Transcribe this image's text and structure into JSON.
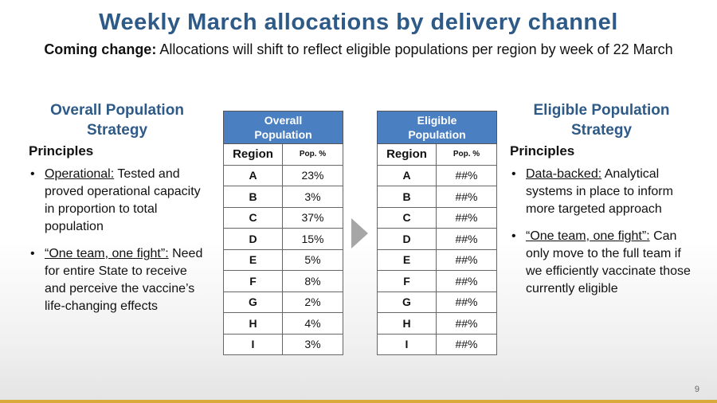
{
  "title": "Weekly March allocations by delivery channel",
  "subtitle": {
    "label": "Coming change:",
    "text": " Allocations will shift to reflect eligible populations per region by week of 22 March"
  },
  "left": {
    "heading_line1": "Overall Population",
    "heading_line2": "Strategy",
    "principles": "Principles",
    "bullets": [
      {
        "term": "Operational:",
        "text": " Tested and proved operational capacity in proportion to total population"
      },
      {
        "term": "“One team, one fight”:",
        "text": " Need for entire State to receive and perceive the vaccine’s life-changing  effects"
      }
    ]
  },
  "right": {
    "heading_line1": "Eligible Population",
    "heading_line2": "Strategy",
    "principles": "Principles",
    "bullets": [
      {
        "term": "Data-backed:",
        "text": " Analytical systems in place to inform more targeted approach"
      },
      {
        "term": "“One team, one fight”:",
        "text": " Can only move to the full team if we efficiently vaccinate those currently eligible"
      }
    ]
  },
  "overall_table": {
    "header_line1": "Overall",
    "header_line2": "Population",
    "col_region": "Region",
    "col_pop": "Pop. %",
    "rows": [
      {
        "region": "A",
        "pop": "23%"
      },
      {
        "region": "B",
        "pop": "3%"
      },
      {
        "region": "C",
        "pop": "37%"
      },
      {
        "region": "D",
        "pop": "15%"
      },
      {
        "region": "E",
        "pop": "5%"
      },
      {
        "region": "F",
        "pop": "8%"
      },
      {
        "region": "G",
        "pop": "2%"
      },
      {
        "region": "H",
        "pop": "4%"
      },
      {
        "region": "I",
        "pop": "3%"
      }
    ]
  },
  "eligible_table": {
    "header_line1": "Eligible",
    "header_line2": "Population",
    "col_region": "Region",
    "col_pop": "Pop. %",
    "rows": [
      {
        "region": "A",
        "pop": "##%"
      },
      {
        "region": "B",
        "pop": "##%"
      },
      {
        "region": "C",
        "pop": "##%"
      },
      {
        "region": "D",
        "pop": "##%"
      },
      {
        "region": "E",
        "pop": "##%"
      },
      {
        "region": "F",
        "pop": "##%"
      },
      {
        "region": "G",
        "pop": "##%"
      },
      {
        "region": "H",
        "pop": "##%"
      },
      {
        "region": "I",
        "pop": "##%"
      }
    ]
  },
  "colors": {
    "title": "#2e5a88",
    "table_header": "#4a7fc1",
    "arrow": "#a6a6a6",
    "bottom_bar": "#d9a93a"
  },
  "arrow_icon": "right-triangle-icon",
  "page_number": "9"
}
